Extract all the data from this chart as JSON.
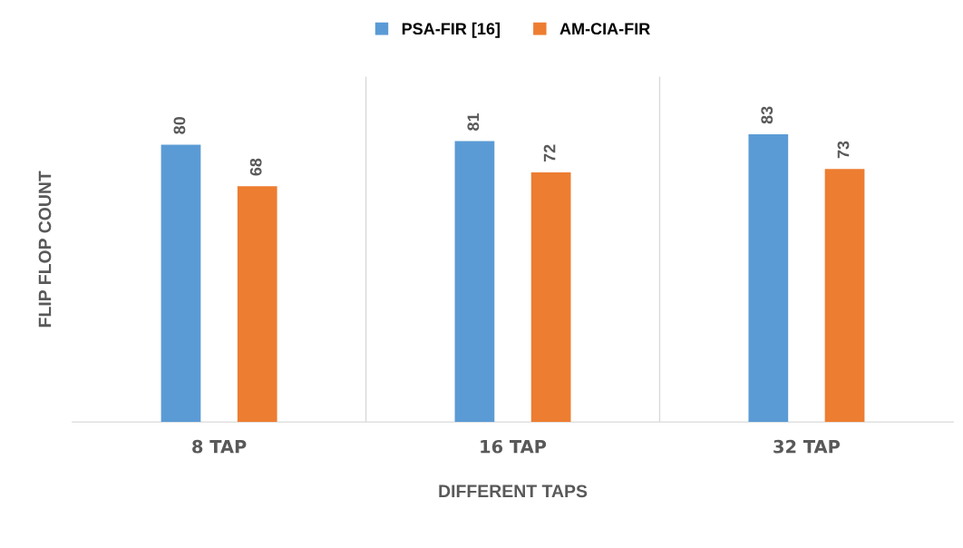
{
  "chart_data": {
    "type": "bar",
    "xlabel": "DIFFERENT TAPS",
    "ylabel": "FLIP FLOP COUNT",
    "categories": [
      "8 TAP",
      "16 TAP",
      "32 TAP"
    ],
    "series": [
      {
        "name": "PSA-FIR [16]",
        "color": "#5b9bd5",
        "values": [
          80,
          81,
          83
        ]
      },
      {
        "name": "AM-CIA-FIR",
        "color": "#ed7d31",
        "values": [
          68,
          72,
          73
        ]
      }
    ],
    "data_labels": true,
    "legend": "top",
    "grid": "x",
    "tick_labels": "x"
  }
}
